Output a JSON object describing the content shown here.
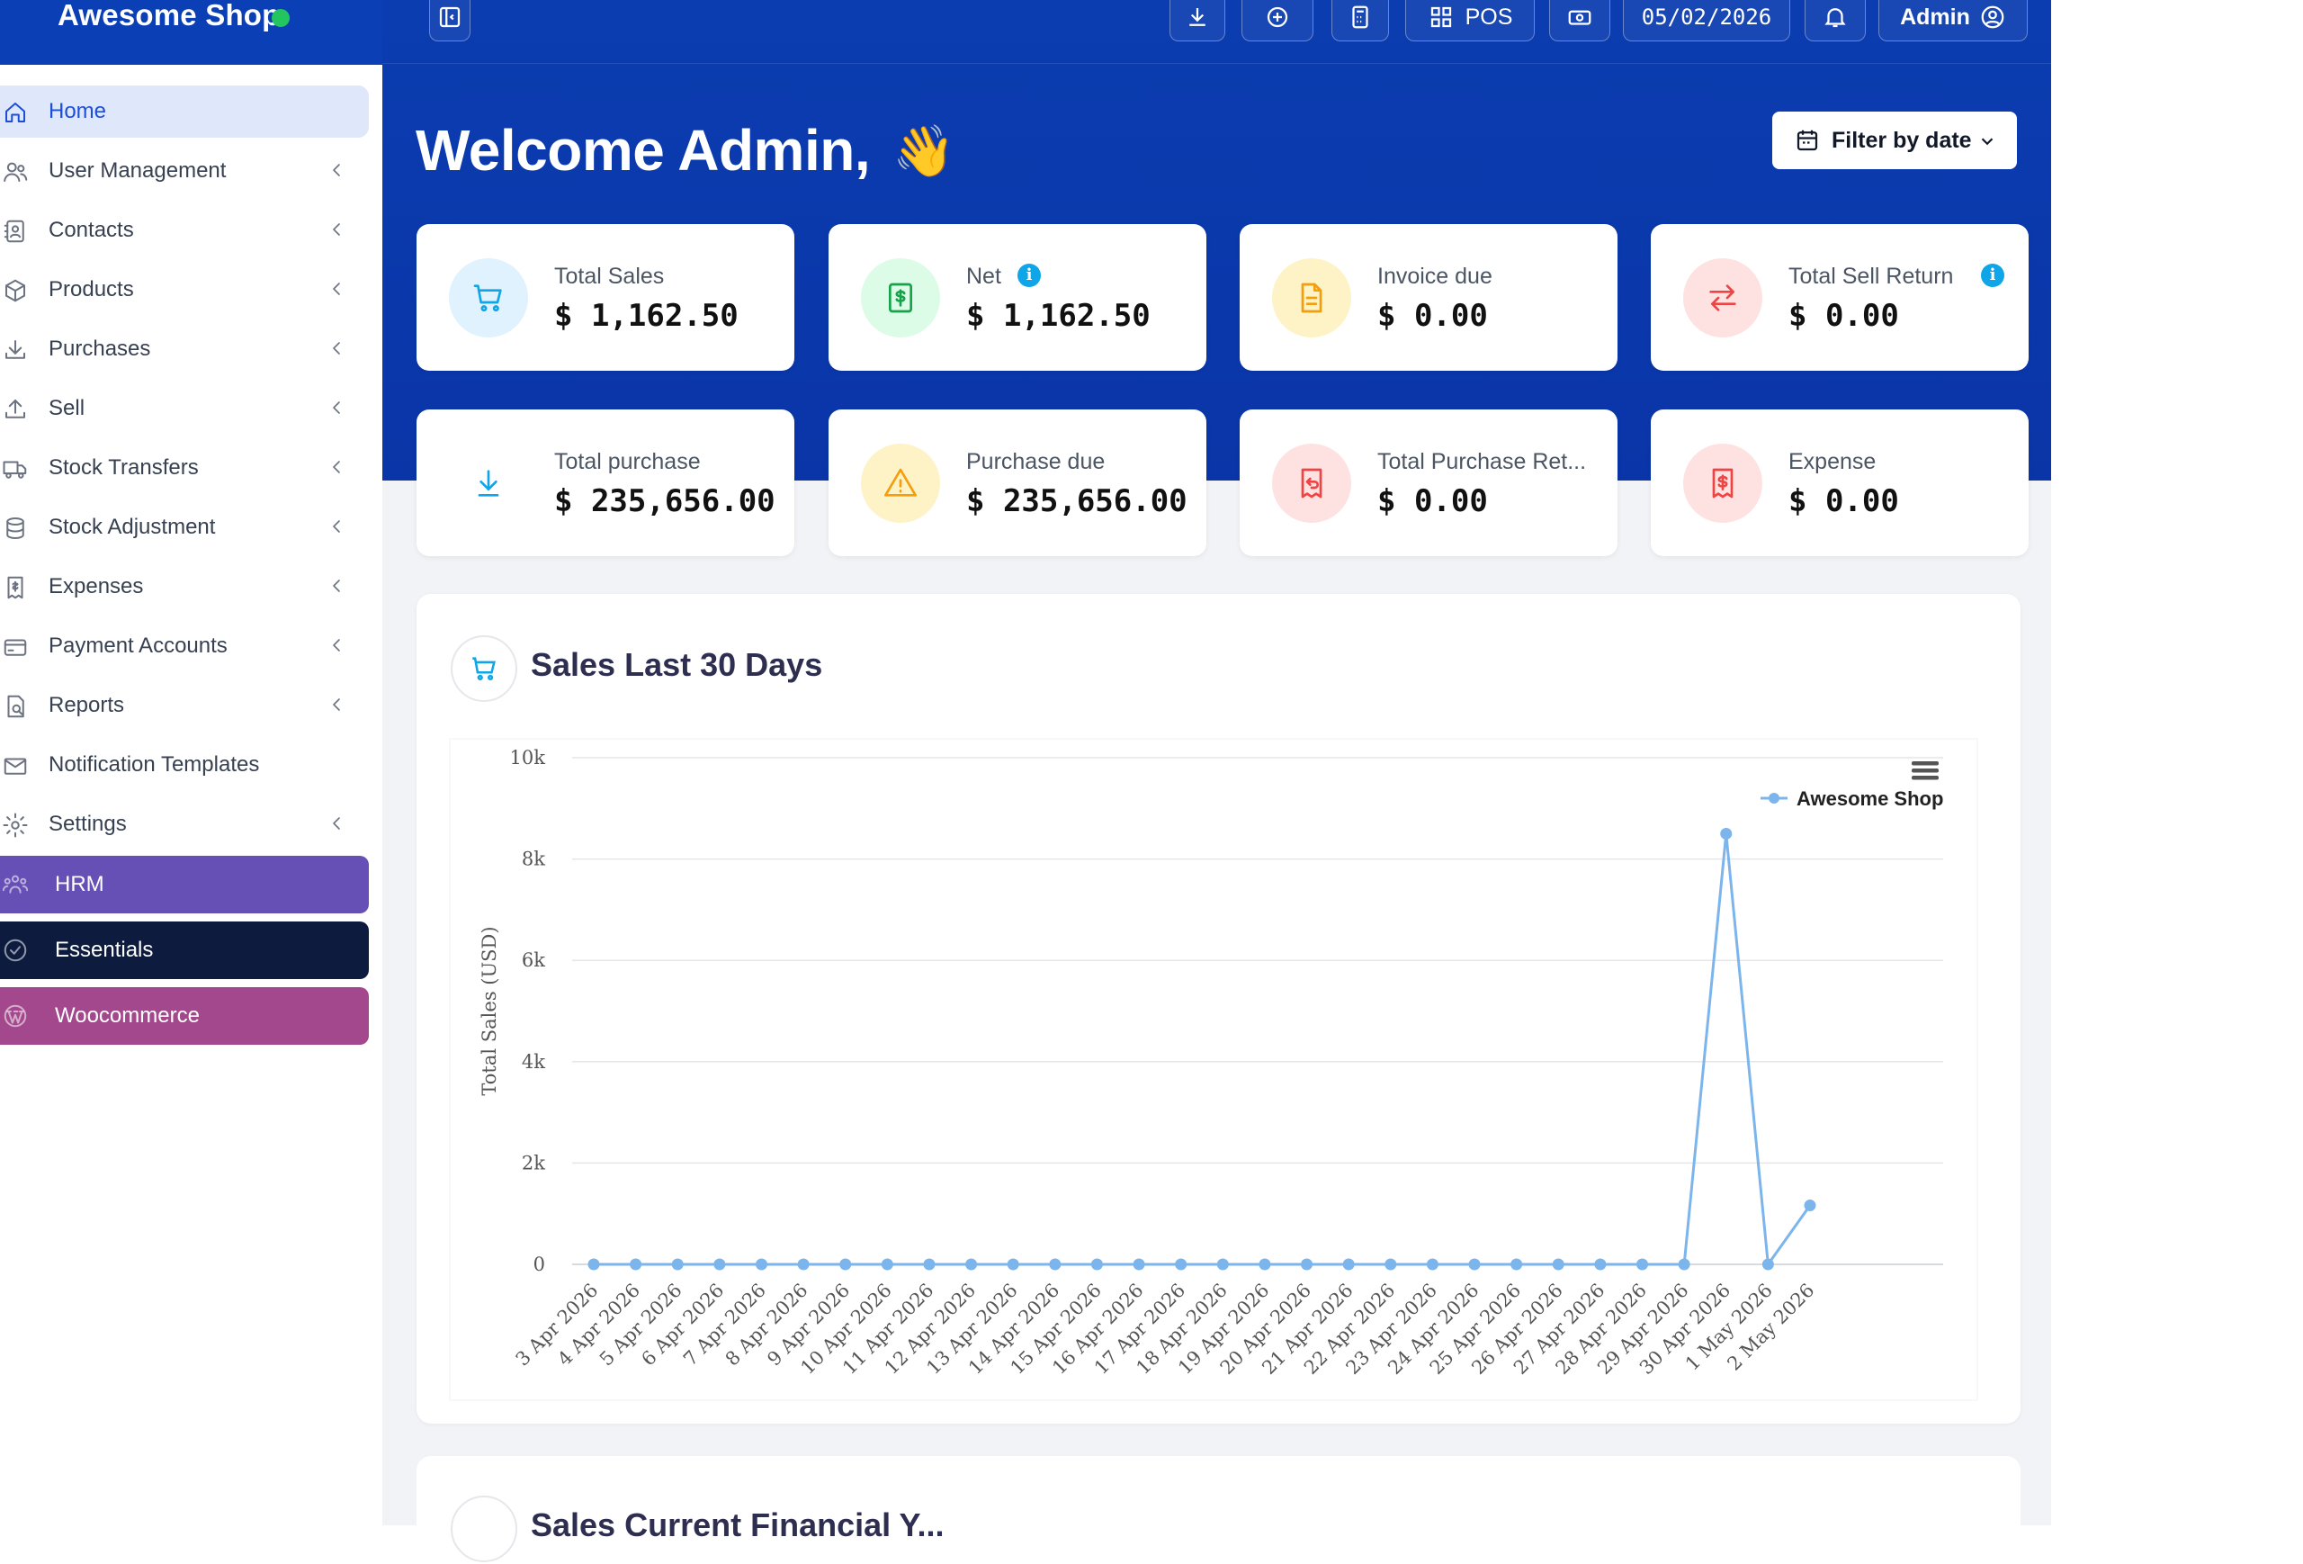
{
  "brand": {
    "name": "Awesome Shop",
    "status_color": "#22c55e"
  },
  "topbar": {
    "pos_label": "POS",
    "date": "05/02/2026",
    "user_label": "Admin"
  },
  "sidebar": {
    "items": [
      {
        "label": "Home",
        "icon": "home-icon",
        "active": true
      },
      {
        "label": "User Management",
        "icon": "users-icon"
      },
      {
        "label": "Contacts",
        "icon": "address-book-icon"
      },
      {
        "label": "Products",
        "icon": "cube-icon"
      },
      {
        "label": "Purchases",
        "icon": "download-icon"
      },
      {
        "label": "Sell",
        "icon": "upload-icon"
      },
      {
        "label": "Stock Transfers",
        "icon": "truck-icon"
      },
      {
        "label": "Stock Adjustment",
        "icon": "database-icon"
      },
      {
        "label": "Expenses",
        "icon": "receipt-icon"
      },
      {
        "label": "Payment Accounts",
        "icon": "credit-card-icon"
      },
      {
        "label": "Reports",
        "icon": "report-icon"
      },
      {
        "label": "Notification Templates",
        "icon": "envelope-icon"
      },
      {
        "label": "Settings",
        "icon": "gear-icon"
      }
    ],
    "modules": [
      {
        "label": "HRM",
        "icon": "people-icon",
        "color": "#6650b5"
      },
      {
        "label": "Essentials",
        "icon": "check-circle-icon",
        "color": "#0d1b3e"
      },
      {
        "label": "Woocommerce",
        "icon": "wordpress-icon",
        "color": "#a3488d"
      }
    ]
  },
  "main": {
    "welcome": "Welcome Admin,",
    "wave": "👋",
    "filter_label": "Filter by date"
  },
  "stats": [
    {
      "label": "Total Sales",
      "value": "$ 1,162.50",
      "icon": "cart-icon",
      "bg": "#e0f2fe",
      "fg": "#0ea5e9"
    },
    {
      "label": "Net",
      "value": "$ 1,162.50",
      "icon": "money-icon",
      "bg": "#dcfce7",
      "fg": "#16a34a",
      "info": "i"
    },
    {
      "label": "Invoice due",
      "value": "$ 0.00",
      "icon": "file-icon",
      "bg": "#fef3c7",
      "fg": "#f59e0b"
    },
    {
      "label": "Total Sell Return",
      "value": "$ 0.00",
      "icon": "exchange-icon",
      "bg": "#fee2e2",
      "fg": "#ef4444",
      "info": "i"
    },
    {
      "label": "Total purchase",
      "value": "$ 235,656.00",
      "icon": "download-arrow-icon",
      "bg": "#ffffff",
      "fg": "#0ea5e9"
    },
    {
      "label": "Purchase due",
      "value": "$ 235,656.00",
      "icon": "warning-icon",
      "bg": "#fef3c7",
      "fg": "#f59e0b"
    },
    {
      "label": "Total Purchase Ret...",
      "value": "$ 0.00",
      "icon": "receipt-return-icon",
      "bg": "#fee2e2",
      "fg": "#ef4444"
    },
    {
      "label": "Expense",
      "value": "$ 0.00",
      "icon": "receipt-dollar-icon",
      "bg": "#fee2e2",
      "fg": "#ef4444"
    }
  ],
  "chart_card": {
    "title": "Sales Last 30 Days",
    "next_title": "Sales Current Financial Y..."
  },
  "chart_data": {
    "type": "line",
    "ylabel": "Total Sales (USD)",
    "ylim": [
      0,
      10000
    ],
    "yticks": [
      "0",
      "2k",
      "4k",
      "6k",
      "8k",
      "10k"
    ],
    "grid": true,
    "legend_position": "top-right",
    "line_color": "#7cb5ec",
    "categories": [
      "3 Apr 2026",
      "4 Apr 2026",
      "5 Apr 2026",
      "6 Apr 2026",
      "7 Apr 2026",
      "8 Apr 2026",
      "9 Apr 2026",
      "10 Apr 2026",
      "11 Apr 2026",
      "12 Apr 2026",
      "13 Apr 2026",
      "14 Apr 2026",
      "15 Apr 2026",
      "16 Apr 2026",
      "17 Apr 2026",
      "18 Apr 2026",
      "19 Apr 2026",
      "20 Apr 2026",
      "21 Apr 2026",
      "22 Apr 2026",
      "23 Apr 2026",
      "24 Apr 2026",
      "25 Apr 2026",
      "26 Apr 2026",
      "27 Apr 2026",
      "28 Apr 2026",
      "29 Apr 2026",
      "30 Apr 2026",
      "1 May 2026",
      "2 May 2026"
    ],
    "series": [
      {
        "name": "Awesome Shop",
        "values": [
          0,
          0,
          0,
          0,
          0,
          0,
          0,
          0,
          0,
          0,
          0,
          0,
          0,
          0,
          0,
          0,
          0,
          0,
          0,
          0,
          0,
          0,
          0,
          0,
          0,
          0,
          0,
          8500,
          0,
          1162.5
        ]
      }
    ]
  }
}
